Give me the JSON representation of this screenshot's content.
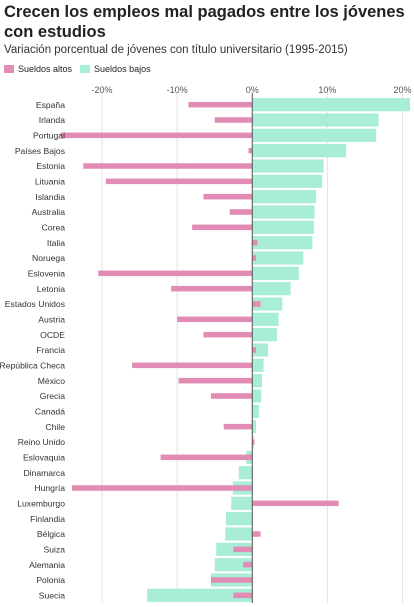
{
  "chart_data": {
    "type": "bar",
    "orientation": "horizontal",
    "title": "Crecen los empleos mal pagados entre los jóvenes con estudios",
    "subtitle": "Variación porcentual de jóvenes con título universitario (1995-2015)",
    "xlabel": "",
    "ylabel": "",
    "xlim": [
      -24,
      21
    ],
    "xticks": [
      -20,
      -10,
      0,
      10,
      20
    ],
    "xtick_labels": [
      "-20%",
      "-10%",
      "0%",
      "10%",
      "20%"
    ],
    "grid": true,
    "legend_position": "top-left",
    "categories": [
      "España",
      "Irlanda",
      "Portugal",
      "Países Bajos",
      "Estonia",
      "Lituania",
      "Islandia",
      "Australia",
      "Corea",
      "Italia",
      "Noruega",
      "Eslovenia",
      "Letonia",
      "Estados Unidos",
      "Austria",
      "OCDE",
      "Francia",
      "República Checa",
      "México",
      "Grecia",
      "Canadá",
      "Chile",
      "Reino Unido",
      "Eslovaquia",
      "Dinamarca",
      "Hungría",
      "Luxemburgo",
      "Finlandia",
      "Bélgica",
      "Suiza",
      "Alemania",
      "Polonia",
      "Suecia"
    ],
    "series": [
      {
        "name": "Sueldos altos",
        "color": "#e28bb5",
        "values": [
          -8.5,
          -5,
          -25.5,
          -0.5,
          -22.5,
          -19.5,
          -6.5,
          -3,
          -8,
          0.7,
          0.5,
          -20.5,
          -10.8,
          1.1,
          -10,
          -6.5,
          0.5,
          -16,
          -9.8,
          -5.5,
          0,
          -3.8,
          0.3,
          -12.2,
          0,
          -24,
          11.5,
          0,
          1.1,
          -2.5,
          -1.2,
          -5.5,
          -2.5
        ]
      },
      {
        "name": "Sueldos bajos",
        "color": "#a8eed6",
        "values": [
          21,
          16.8,
          16.5,
          12.5,
          9.5,
          9.3,
          8.5,
          8.3,
          8.2,
          8,
          6.8,
          6.2,
          5.1,
          4,
          3.5,
          3.3,
          2.1,
          1.5,
          1.3,
          1.2,
          0.9,
          0.5,
          0.2,
          -0.8,
          -1.8,
          -2.6,
          -2.8,
          -3.5,
          -3.6,
          -4.8,
          -5,
          -5.5,
          -14
        ]
      }
    ]
  }
}
